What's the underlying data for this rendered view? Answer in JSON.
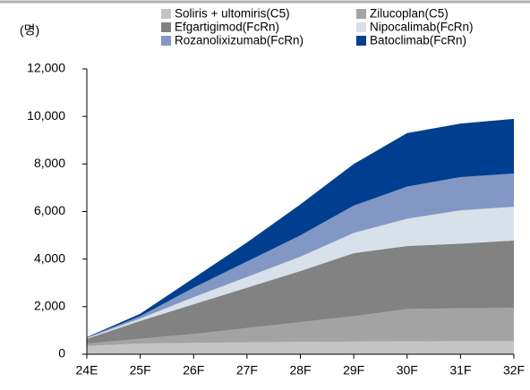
{
  "chart_data": {
    "type": "stacked-area",
    "y_label": "(명)",
    "categories": [
      "24E",
      "25F",
      "26F",
      "27F",
      "28F",
      "29F",
      "30F",
      "31F",
      "32F"
    ],
    "series": [
      {
        "name": "Soliris + ultomiris(C5)",
        "color": "#c4c4c4",
        "values": [
          350,
          450,
          480,
          500,
          520,
          530,
          540,
          550,
          550
        ]
      },
      {
        "name": "Zilucoplan(C5)",
        "color": "#a3a3a3",
        "values": [
          100,
          200,
          370,
          600,
          830,
          1070,
          1360,
          1380,
          1400
        ]
      },
      {
        "name": "Efgartigimod(FcRn)",
        "color": "#828282",
        "values": [
          200,
          750,
          1250,
          1700,
          2150,
          2650,
          2650,
          2720,
          2830
        ]
      },
      {
        "name": "Nipocalimab(FcRn)",
        "color": "#d8e0ea",
        "values": [
          30,
          100,
          300,
          450,
          600,
          850,
          1150,
          1400,
          1420
        ]
      },
      {
        "name": "Rozanolixizumab(FcRn)",
        "color": "#8297c3",
        "values": [
          20,
          100,
          400,
          650,
          900,
          1150,
          1350,
          1400,
          1400
        ]
      },
      {
        "name": "Batoclimab(FcRn)",
        "color": "#003f8f",
        "values": [
          20,
          100,
          400,
          800,
          1300,
          1750,
          2250,
          2250,
          2300
        ]
      }
    ],
    "ylim": [
      0,
      12000
    ],
    "yticks": [
      0,
      {
        "value": 2000,
        "label": "2,000"
      },
      {
        "value": 4000,
        "label": "4,000"
      },
      {
        "value": 6000,
        "label": "6,000"
      },
      {
        "value": 8000,
        "label": "8,000"
      },
      {
        "value": 10000,
        "label": "10,000"
      },
      {
        "value": 12000,
        "label": "12,000"
      }
    ]
  }
}
